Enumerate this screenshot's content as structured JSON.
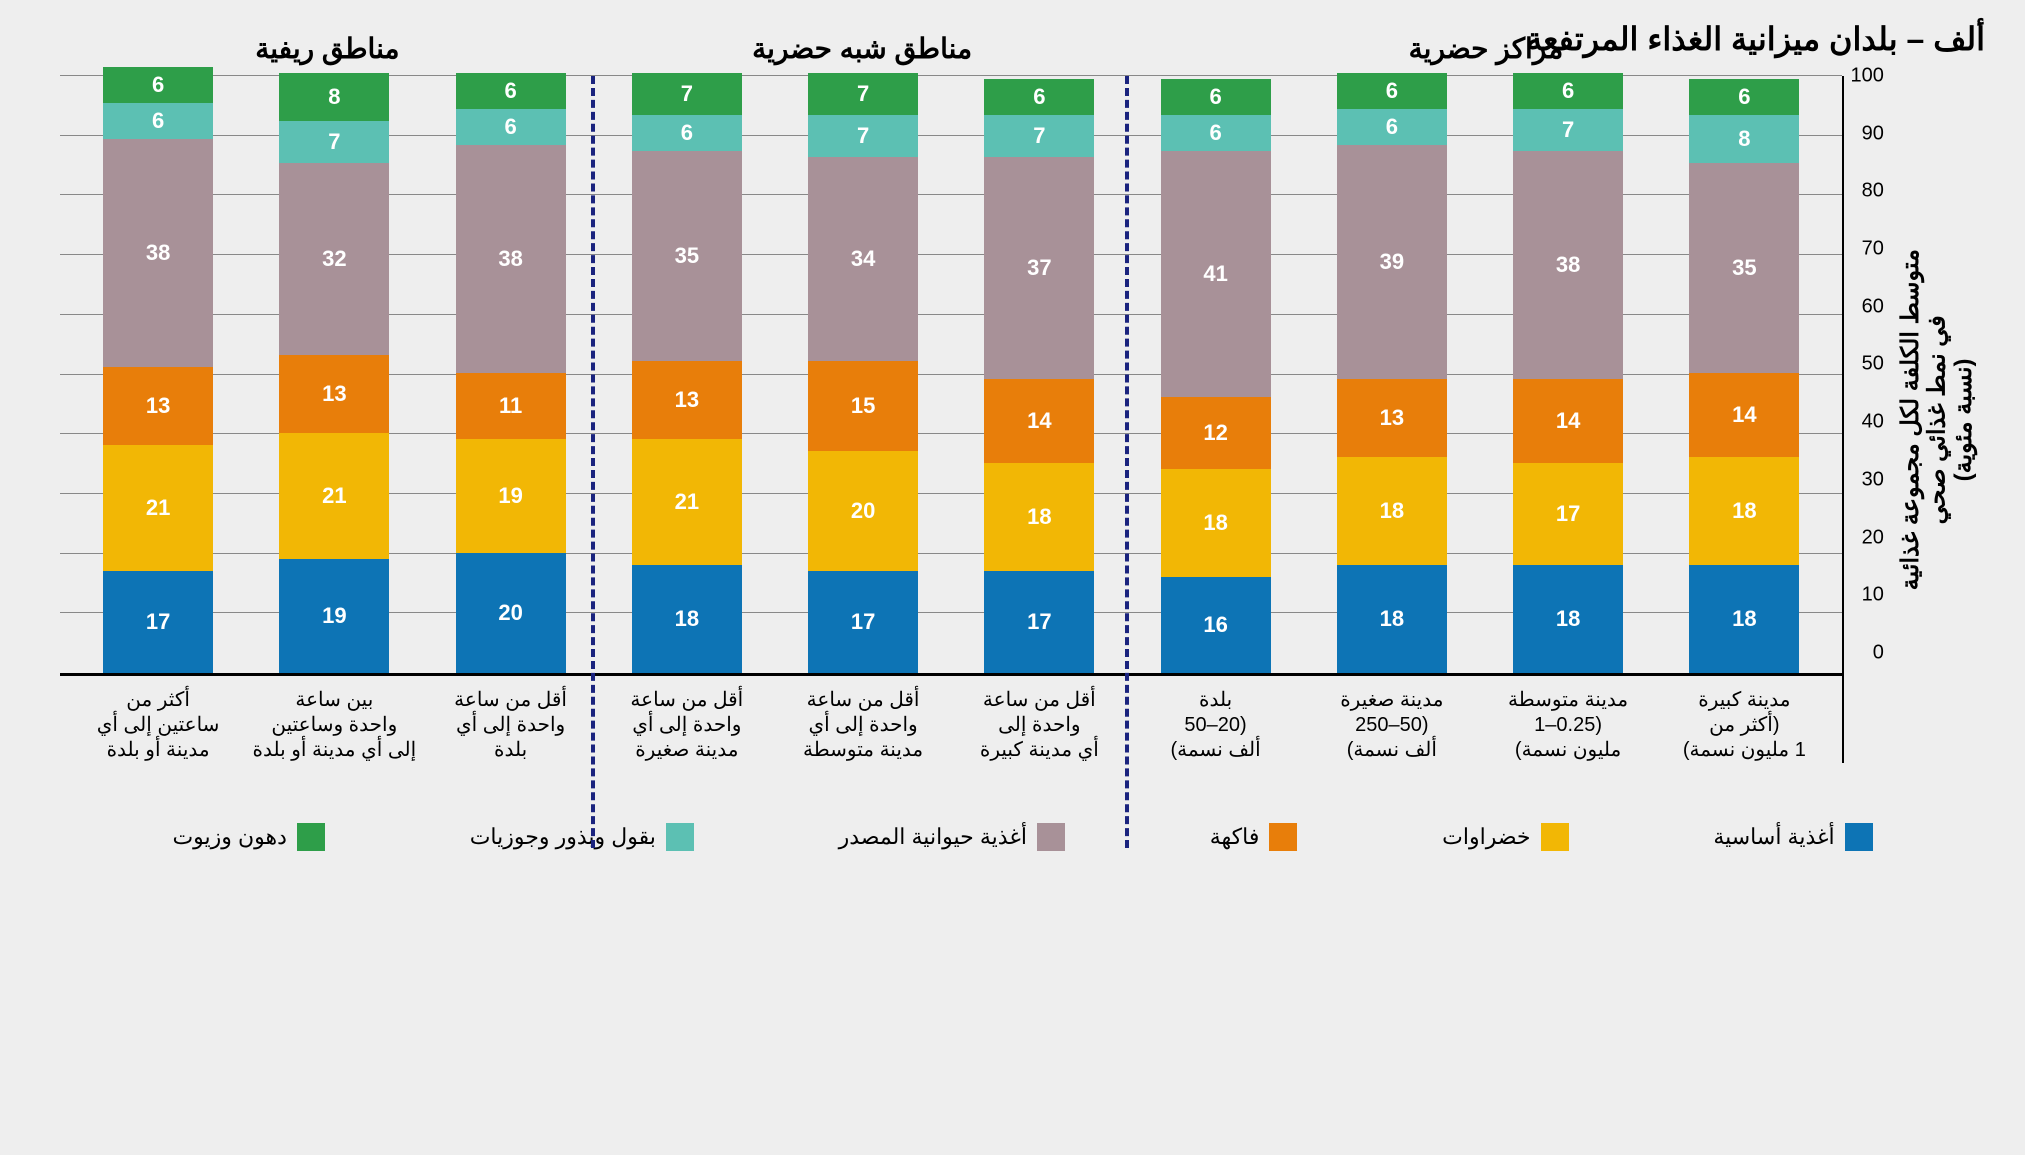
{
  "title": "ألف – بلدان ميزانية الغذاء المرتفعة",
  "y_axis_label": "متوسط الكلفة لكل مجموعة غذائية\nفي نمط غذائي صحي\n(نسبة مئوية)",
  "chart": {
    "type": "stacked-bar",
    "ylim": [
      0,
      100
    ],
    "ytick_step": 10,
    "background_color": "#eeeeee",
    "grid_color": "#888888",
    "axis_color": "#000000",
    "divider_color": "#1a237e",
    "categories": [
      {
        "key": "staple",
        "label": "أغذية أساسية",
        "color": "#0d74b5"
      },
      {
        "key": "veg",
        "label": "خضراوات",
        "color": "#f2b705"
      },
      {
        "key": "fruit",
        "label": "فاكهة",
        "color": "#e87e0a"
      },
      {
        "key": "animal",
        "label": "أغذية حيوانية المصدر",
        "color": "#a89198"
      },
      {
        "key": "pulses",
        "label": "بقول وبذور وجوزيات",
        "color": "#5cc0b3"
      },
      {
        "key": "fats",
        "label": "دهون وزيوت",
        "color": "#2e9e49"
      }
    ],
    "groups": [
      {
        "label": "مراكز حضرية",
        "bars": [
          {
            "label": "مدينة كبيرة\n(أكثر من\n1 مليون نسمة)",
            "values": [
              18,
              18,
              14,
              35,
              8,
              6
            ]
          },
          {
            "label": "مدينة متوسطة\n(0.25–1\nمليون نسمة)",
            "values": [
              18,
              17,
              14,
              38,
              7,
              6
            ]
          },
          {
            "label": "مدينة صغيرة\n(50–250\nألف نسمة)",
            "values": [
              18,
              18,
              13,
              39,
              6,
              6
            ]
          },
          {
            "label": "بلدة\n(20–50\nألف نسمة)",
            "values": [
              16,
              18,
              12,
              41,
              6,
              6
            ]
          }
        ]
      },
      {
        "label": "مناطق شبه حضرية",
        "bars": [
          {
            "label": "أقل من ساعة\nواحدة إلى\nأي مدينة كبيرة",
            "values": [
              17,
              18,
              14,
              37,
              7,
              6
            ]
          },
          {
            "label": "أقل من ساعة\nواحدة إلى أي\nمدينة متوسطة",
            "values": [
              17,
              20,
              15,
              34,
              7,
              7
            ]
          },
          {
            "label": "أقل من ساعة\nواحدة إلى أي\nمدينة صغيرة",
            "values": [
              18,
              21,
              13,
              35,
              6,
              7
            ]
          }
        ]
      },
      {
        "label": "مناطق ريفية",
        "bars": [
          {
            "label": "أقل من ساعة\nواحدة إلى أي\nبلدة",
            "values": [
              20,
              19,
              11,
              38,
              6,
              6
            ]
          },
          {
            "label": "بين ساعة\nواحدة وساعتين\nإلى أي مدينة أو بلدة",
            "values": [
              19,
              21,
              13,
              32,
              7,
              8
            ]
          },
          {
            "label": "أكثر من\nساعتين إلى أي\nمدينة أو بلدة",
            "values": [
              17,
              21,
              13,
              38,
              6,
              6
            ]
          }
        ]
      }
    ]
  }
}
